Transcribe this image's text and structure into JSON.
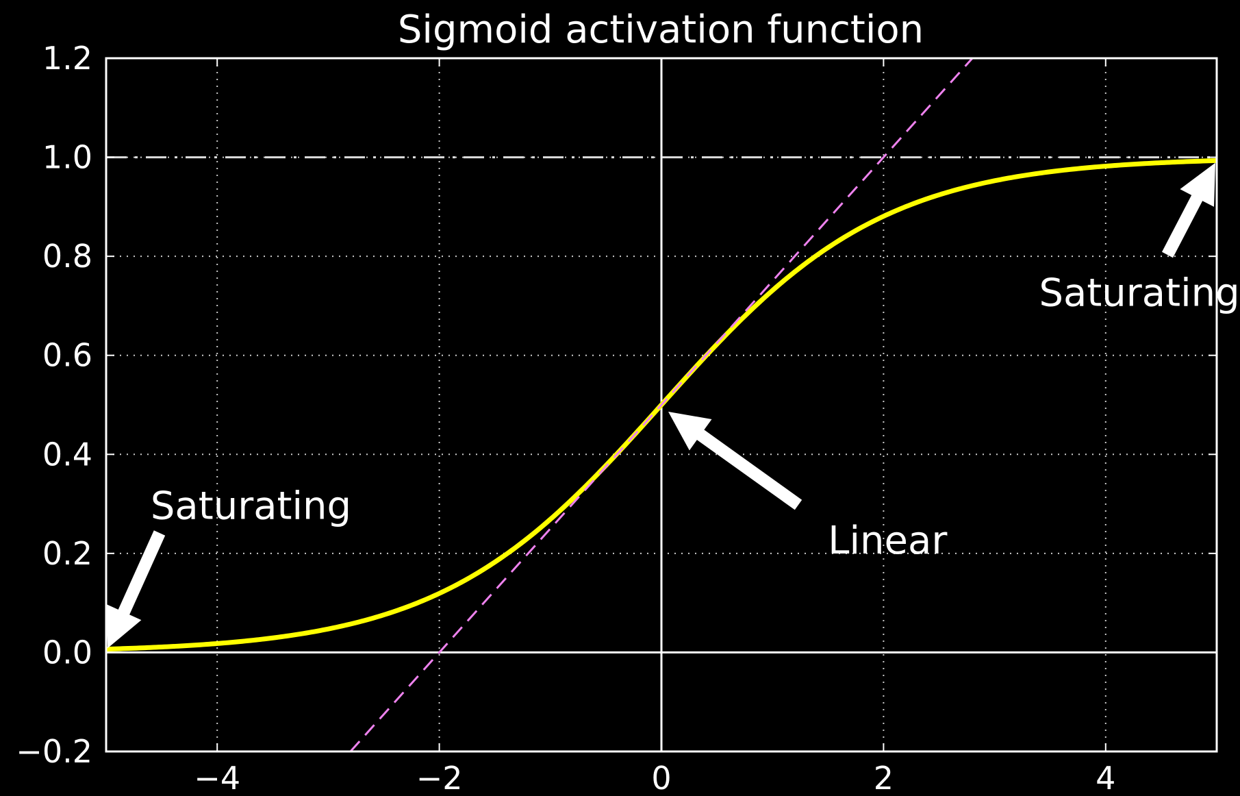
{
  "chart_data": {
    "type": "line",
    "title": "Sigmoid activation function",
    "xlabel": "",
    "ylabel": "",
    "xlim": [
      -5,
      5
    ],
    "ylim": [
      -0.2,
      1.2
    ],
    "xticks": [
      -4,
      -2,
      0,
      2,
      4
    ],
    "xtick_labels": [
      "−4",
      "−2",
      "0",
      "2",
      "4"
    ],
    "yticks": [
      -0.2,
      0.0,
      0.2,
      0.4,
      0.6,
      0.8,
      1.0,
      1.2
    ],
    "ytick_labels": [
      "−0.2",
      "0.0",
      "0.2",
      "0.4",
      "0.6",
      "0.8",
      "1.0",
      "1.2"
    ],
    "grid": true,
    "legend": "none",
    "series": [
      {
        "function": "sigmoid",
        "color": "#ffff00",
        "style": "solid",
        "x": [
          -5,
          -4,
          -3,
          -2.5,
          -2,
          -1.5,
          -1,
          -0.5,
          0,
          0.5,
          1,
          1.5,
          2,
          2.5,
          3,
          4,
          5
        ],
        "values": [
          0.007,
          0.018,
          0.047,
          0.076,
          0.119,
          0.182,
          0.269,
          0.378,
          0.5,
          0.622,
          0.731,
          0.818,
          0.881,
          0.924,
          0.953,
          0.982,
          0.993
        ]
      },
      {
        "function": "tangent at x=0",
        "color": "#ee82ee",
        "style": "dashed",
        "x": [
          -2.8,
          2.8
        ],
        "values": [
          -0.2,
          1.2
        ]
      },
      {
        "function": "asymptote",
        "color": "#dddddd",
        "style": "dash-dot",
        "x": [
          -5,
          5
        ],
        "values": [
          1.0,
          1.0
        ]
      }
    ],
    "reference_lines": [
      {
        "axis": "x",
        "value": 0,
        "color": "#ffffff"
      },
      {
        "axis": "y",
        "value": 0,
        "color": "#ffffff"
      }
    ],
    "annotations": [
      {
        "name": "saturating-left",
        "text": "Saturating",
        "x": -4.6,
        "y": 0.27,
        "arrow_to": {
          "x": -5,
          "y": 0.0
        }
      },
      {
        "name": "linear",
        "text": "Linear",
        "x": 1.5,
        "y": 0.2,
        "arrow_to": {
          "x": 0,
          "y": 0.5
        }
      },
      {
        "name": "saturating-right",
        "text": "Saturating",
        "x": 3.4,
        "y": 0.7,
        "arrow_to": {
          "x": 5,
          "y": 1.0
        }
      }
    ],
    "colors": {
      "background": "#000000",
      "axes": "#ffffff",
      "grid": "#cccccc",
      "text": "#ffffff",
      "arrow": "#ffffff"
    }
  }
}
